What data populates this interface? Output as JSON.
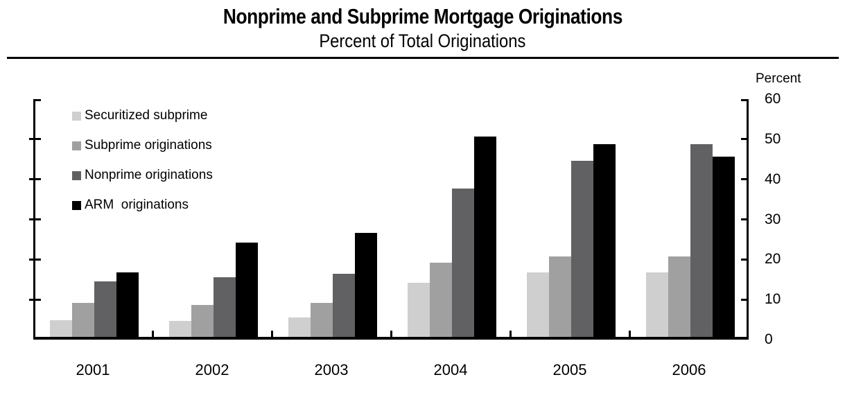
{
  "chart_data": {
    "type": "bar",
    "title": "Nonprime and Subprime Mortgage Originations",
    "subtitle": "Percent of Total Originations",
    "y_axis_title": "Percent",
    "ylim": [
      0,
      60
    ],
    "y_ticks": [
      0,
      10,
      20,
      30,
      40,
      50,
      60
    ],
    "grid": false,
    "legend_position": "top-left",
    "categories": [
      "2001",
      "2002",
      "2003",
      "2004",
      "2005",
      "2006"
    ],
    "series": [
      {
        "name": "Securitized subprime",
        "color": "#cfcfcf",
        "values": [
          4.2,
          4.0,
          4.8,
          13.5,
          16,
          16
        ]
      },
      {
        "name": "Subprime originations",
        "color": "#a0a0a0",
        "values": [
          8.5,
          8.0,
          8.5,
          18.5,
          20,
          20
        ]
      },
      {
        "name": "Nonprime originations",
        "color": "#616164",
        "values": [
          13.8,
          14.8,
          15.8,
          37,
          44,
          48
        ]
      },
      {
        "name": "ARM  originations",
        "color": "#000000",
        "values": [
          16,
          23.5,
          26,
          50,
          48,
          45
        ]
      }
    ]
  }
}
